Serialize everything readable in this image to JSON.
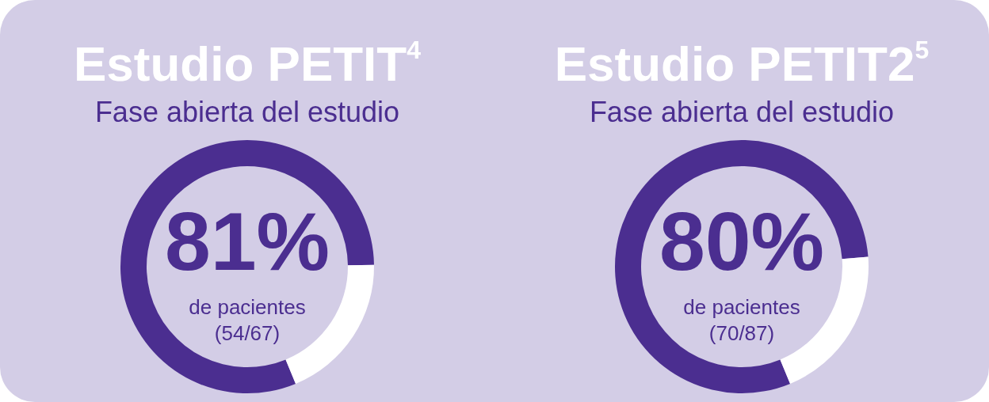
{
  "chart_data": [
    {
      "type": "donut",
      "title": "Estudio PETIT$^{4}$",
      "subtitle": "Fase abierta del estudio",
      "categories": [
        null,
        null
      ],
      "values": [
        81,
        19
      ],
      "colors": [
        "#4b2e90",
        "#ffffff"
      ],
      "annotations": [
        "81%",
        "de pacientes",
        "(54/67)"
      ]
    },
    {
      "type": "donut",
      "title": "Estudio PETIT2$^{5}$",
      "subtitle": "Fase abierta del estudio",
      "categories": [
        null,
        null
      ],
      "values": [
        80,
        20
      ],
      "colors": [
        "#4b2e90",
        "#ffffff"
      ],
      "annotations": [
        "80%",
        "de pacientes",
        "(70/87)"
      ]
    }
  ]
}
